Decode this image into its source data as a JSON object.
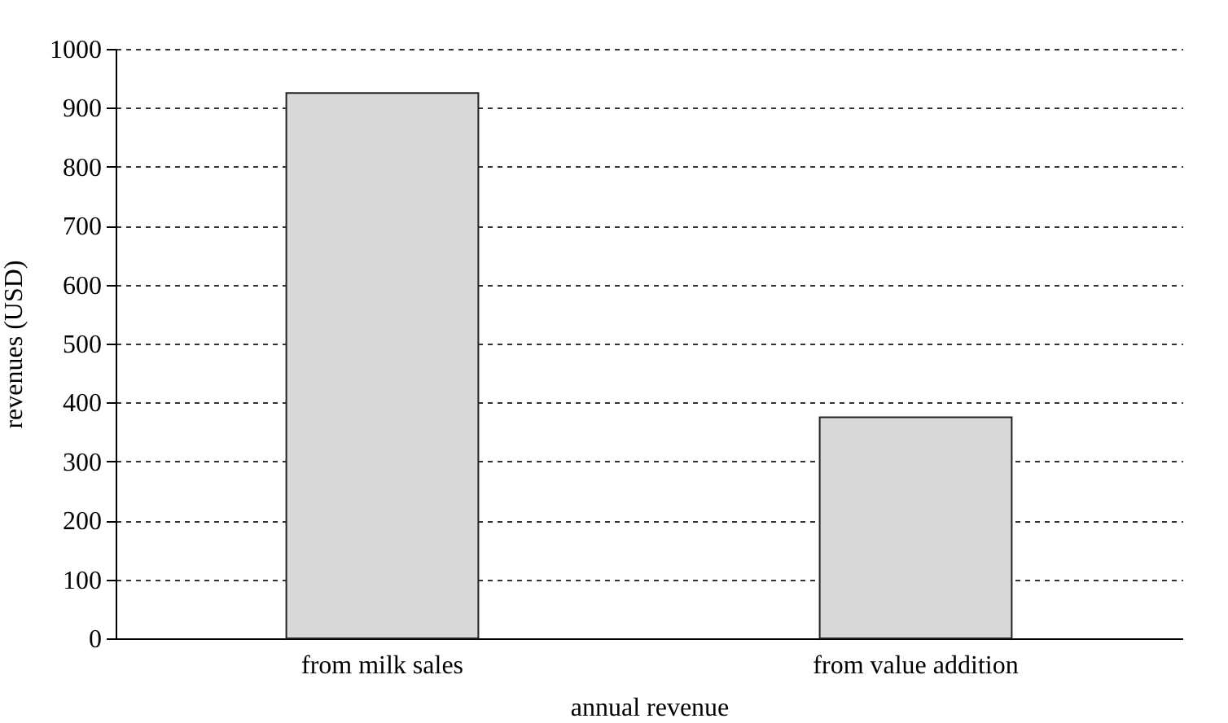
{
  "chart_data": {
    "type": "bar",
    "xlabel": "annual revenue",
    "ylabel": "revenues (USD)",
    "categories": [
      "from milk sales",
      "from value addition"
    ],
    "values": [
      925,
      375
    ],
    "color": "#d9d9d9",
    "ylim": [
      0,
      1000
    ],
    "yticks": [
      0,
      100,
      200,
      300,
      400,
      500,
      600,
      700,
      800,
      900,
      1000
    ],
    "grid": "y"
  }
}
